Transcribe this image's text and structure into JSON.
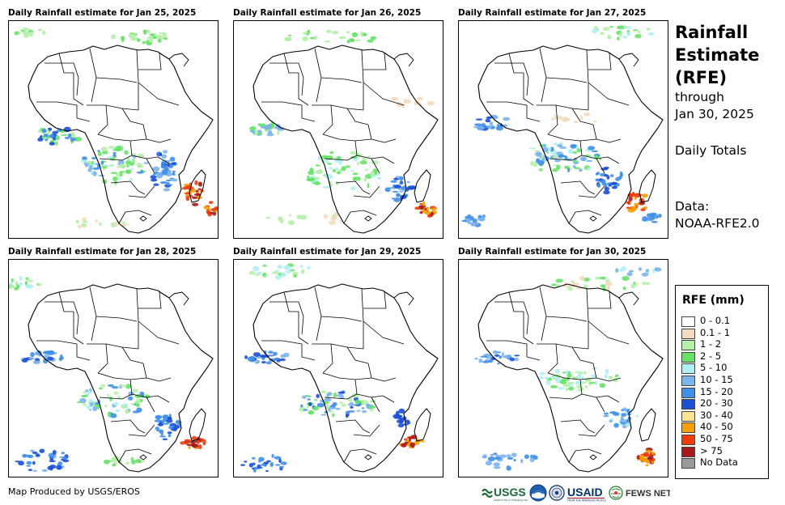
{
  "panels": [
    {
      "title": "Daily Rainfall estimate for Jan 25, 2025"
    },
    {
      "title": "Daily Rainfall estimate for Jan 26, 2025"
    },
    {
      "title": "Daily Rainfall estimate for Jan 27, 2025"
    },
    {
      "title": "Daily Rainfall estimate for Jan 28, 2025"
    },
    {
      "title": "Daily Rainfall estimate for Jan 29, 2025"
    },
    {
      "title": "Daily Rainfall estimate for Jan 30, 2025"
    }
  ],
  "heading": {
    "line1": "Rainfall",
    "line2": "Estimate",
    "line3": "(RFE)",
    "line4": "through",
    "line5": "Jan 30, 2025"
  },
  "subtitle": "Daily Totals",
  "data_source": {
    "label": "Data:",
    "value": "NOAA-RFE2.0"
  },
  "legend": {
    "title": "RFE (mm)",
    "items": [
      {
        "label": "0 - 0.1",
        "color": "#ffffff"
      },
      {
        "label": "0.1 - 1",
        "color": "#f2dcbc"
      },
      {
        "label": "1 - 2",
        "color": "#b4f0a8"
      },
      {
        "label": "2 - 5",
        "color": "#66e366"
      },
      {
        "label": "5 - 10",
        "color": "#b0f0f4"
      },
      {
        "label": "10 - 15",
        "color": "#7ab4ee"
      },
      {
        "label": "15 - 20",
        "color": "#3f8ee8"
      },
      {
        "label": "20 - 30",
        "color": "#1a4fd6"
      },
      {
        "label": "30 - 40",
        "color": "#fbe38f"
      },
      {
        "label": "40 - 50",
        "color": "#f5a000"
      },
      {
        "label": "50 - 75",
        "color": "#f03c0a"
      },
      {
        "label": "> 75",
        "color": "#a81a1a"
      },
      {
        "label": "No Data",
        "color": "#9a9a9a"
      }
    ]
  },
  "credit": "Map Produced by USGS/EROS",
  "logos": {
    "usgs": "USGS",
    "noaa": "NOAA",
    "usaid": "USAID",
    "fewsnet": "FEWS NET"
  }
}
